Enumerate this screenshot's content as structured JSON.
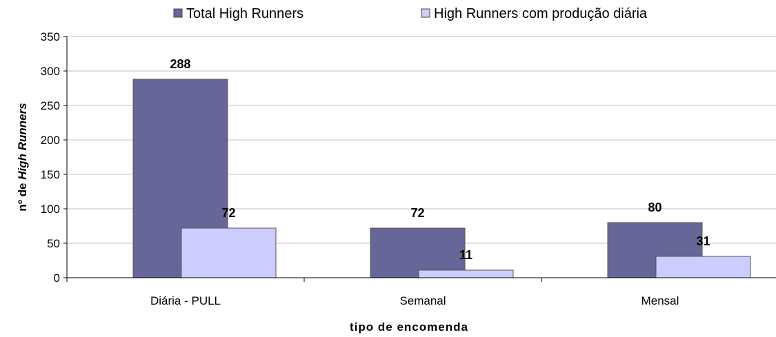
{
  "chart_data": {
    "type": "bar",
    "categories": [
      "Diária - PULL",
      "Semanal",
      "Mensal"
    ],
    "series": [
      {
        "name": "Total High Runners",
        "values": [
          288,
          72,
          80
        ],
        "color": "#666699"
      },
      {
        "name": "High Runners com produção diária",
        "values": [
          72,
          11,
          31
        ],
        "color": "#ccccff"
      }
    ],
    "xlabel": "tipo de encomenda",
    "ylabel_prefix": "nº de ",
    "ylabel_italic": "High Runners",
    "ylim": [
      0,
      350
    ],
    "yticks": [
      0,
      50,
      100,
      150,
      200,
      250,
      300,
      350
    ],
    "grid": true,
    "legend": "top",
    "gridline_color": "#c0c0c0"
  }
}
